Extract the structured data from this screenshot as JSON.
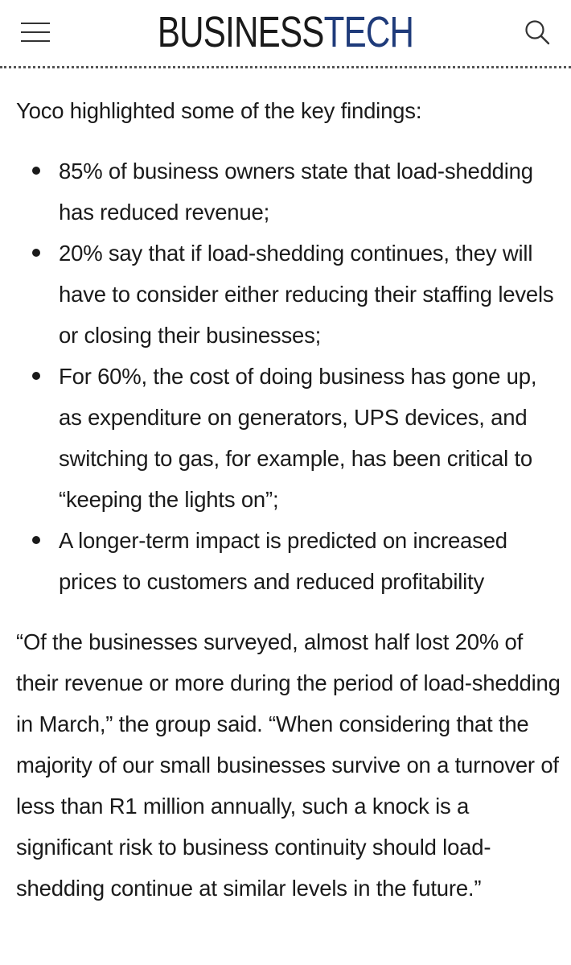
{
  "header": {
    "logo_part1": "BUSINESS",
    "logo_part2": "TECH",
    "menu_icon": "hamburger-menu-icon",
    "search_icon": "search-icon",
    "brand_color": "#1f3b7a"
  },
  "article": {
    "intro": "Yoco highlighted some of the key findings:",
    "findings": [
      "85% of business owners state that load-shedding has reduced revenue;",
      "20% say that if load-shedding continues, they will have to consider either reducing their staffing levels or closing their businesses;",
      "For 60%, the cost of doing business has gone up, as expenditure on generators, UPS devices, and switching to gas, for example, has been critical to “keeping the lights on”;",
      "A longer-term impact is predicted on increased prices to customers and reduced profitability"
    ],
    "quote": "“Of the businesses surveyed, almost half lost 20% of their revenue or more during the period of load-shedding in March,” the group said. “When considering that the majority of our small businesses survive on a turnover of less than R1 million annually, such a knock is a significant risk to business continuity should load-shedding continue at similar levels in the future.”"
  }
}
